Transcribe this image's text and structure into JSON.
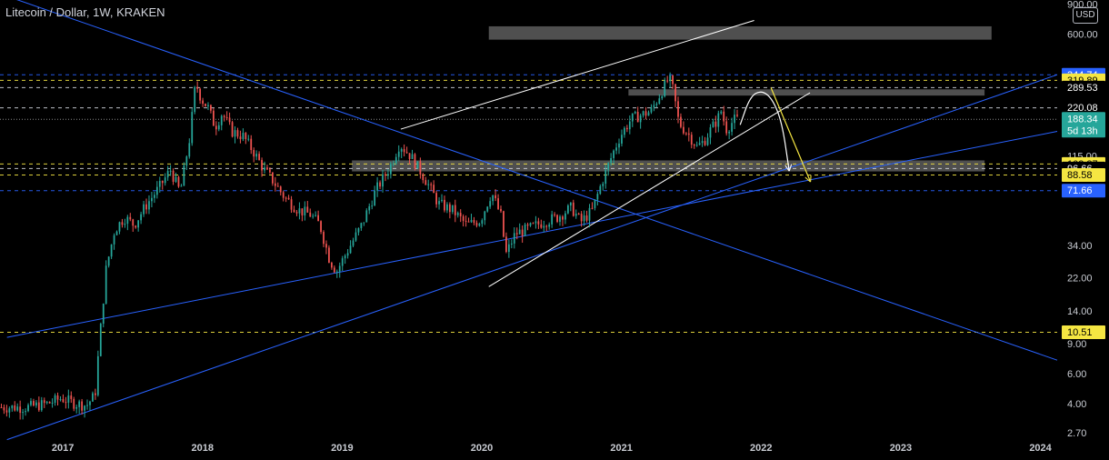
{
  "header": {
    "symbol_title": "Litecoin / Dollar, 1W, KRAKEN",
    "currency_button": "USD"
  },
  "colors": {
    "background": "#000000",
    "candle_up": "#26a69a",
    "candle_down": "#ef5350",
    "trendline_blue": "#2962ff",
    "trendline_white": "#ffffff",
    "projection_yellow": "#f5e642",
    "zone_gray": "#5d5d5d",
    "level_white": "#d1d4dc",
    "level_yellow": "#f5e642",
    "level_blue": "#2962ff"
  },
  "chart_data": {
    "type": "candlestick",
    "exchange": "KRAKEN",
    "interval": "1W",
    "y_scale": "log",
    "ylim": [
      2.5,
      950
    ],
    "xlim": [
      2016.55,
      2024.12
    ],
    "grid": false,
    "x_tick_labels": [
      "2017",
      "2018",
      "2019",
      "2020",
      "2021",
      "2022",
      "2023",
      "2024"
    ],
    "x_tick_values": [
      2017,
      2018,
      2019,
      2020,
      2021,
      2022,
      2023,
      2024
    ],
    "y_tick_labels": [
      "900.00",
      "600.00",
      "115.00",
      "34.00",
      "22.00",
      "14.00",
      "9.00",
      "6.00",
      "4.00",
      "2.70"
    ],
    "y_tick_values": [
      900,
      600,
      115,
      34,
      22,
      14,
      9,
      6,
      4,
      2.7
    ],
    "price_levels": [
      {
        "value": 344.74,
        "label": "344.74",
        "style": "badge-blue"
      },
      {
        "value": 319.89,
        "label": "319.89",
        "style": "dashed-yellow"
      },
      {
        "value": 289.53,
        "label": "289.53",
        "style": "dashed-white"
      },
      {
        "value": 220.08,
        "label": "220.08",
        "style": "dashed-white"
      },
      {
        "value": 188.34,
        "label": "188.34",
        "style": "current"
      },
      {
        "value": 102.87,
        "label": "102.87",
        "style": "dashed-yellow"
      },
      {
        "value": 96.66,
        "label": "96.66",
        "style": "dashed-white"
      },
      {
        "value": 88.58,
        "label": "88.58",
        "style": "dashed-yellow"
      },
      {
        "value": 71.66,
        "label": "71.66",
        "style": "badge-blue"
      },
      {
        "value": 10.51,
        "label": "10.51",
        "style": "dashed-yellow"
      }
    ],
    "current_price": {
      "value": 188.34,
      "label": "188.34",
      "countdown": "5d 13h"
    },
    "zones": [
      {
        "x": [
          2020.05,
          2023.65
        ],
        "y": [
          555,
          665
        ]
      },
      {
        "x": [
          2021.05,
          2023.6
        ],
        "y": [
          260,
          283
        ]
      },
      {
        "x": [
          2019.07,
          2023.6
        ],
        "y": [
          93,
          108
        ]
      }
    ],
    "trendlines": [
      {
        "color": "blue",
        "points": [
          [
            2016.6,
            1000
          ],
          [
            2024.12,
            7.2
          ]
        ]
      },
      {
        "color": "blue",
        "points": [
          [
            2016.6,
            9.8
          ],
          [
            2024.12,
            160
          ]
        ]
      },
      {
        "color": "blue",
        "points": [
          [
            2016.6,
            2.45
          ],
          [
            2024.12,
            345
          ]
        ]
      },
      {
        "color": "white",
        "points": [
          [
            2019.42,
            165
          ],
          [
            2021.95,
            720
          ]
        ]
      },
      {
        "color": "white",
        "points": [
          [
            2020.05,
            19.5
          ],
          [
            2022.35,
            270
          ]
        ]
      }
    ],
    "projections": [
      {
        "color": "white",
        "points": [
          [
            2021.85,
            175
          ],
          [
            2021.92,
            255
          ],
          [
            2022.0,
            280
          ],
          [
            2022.08,
            250
          ],
          [
            2022.15,
            180
          ],
          [
            2022.2,
            95
          ]
        ]
      },
      {
        "color": "yellow",
        "points": [
          [
            2022.07,
            290
          ],
          [
            2022.35,
            82
          ]
        ]
      }
    ],
    "price_path": [
      [
        2016.55,
        3.8
      ],
      [
        2016.75,
        3.8
      ],
      [
        2016.9,
        4.0
      ],
      [
        2017.0,
        4.3
      ],
      [
        2017.1,
        4.0
      ],
      [
        2017.18,
        3.9
      ],
      [
        2017.24,
        4.5
      ],
      [
        2017.27,
        9.0
      ],
      [
        2017.32,
        25
      ],
      [
        2017.38,
        42
      ],
      [
        2017.45,
        50
      ],
      [
        2017.52,
        45
      ],
      [
        2017.6,
        58
      ],
      [
        2017.7,
        75
      ],
      [
        2017.78,
        95
      ],
      [
        2017.85,
        70
      ],
      [
        2017.92,
        150
      ],
      [
        2017.96,
        310
      ],
      [
        2018.0,
        250
      ],
      [
        2018.05,
        220
      ],
      [
        2018.1,
        170
      ],
      [
        2018.15,
        205
      ],
      [
        2018.22,
        160
      ],
      [
        2018.3,
        150
      ],
      [
        2018.38,
        120
      ],
      [
        2018.45,
        95
      ],
      [
        2018.5,
        85
      ],
      [
        2018.6,
        65
      ],
      [
        2018.7,
        55
      ],
      [
        2018.78,
        52
      ],
      [
        2018.85,
        45
      ],
      [
        2018.92,
        28
      ],
      [
        2018.97,
        24
      ],
      [
        2019.05,
        32
      ],
      [
        2019.15,
        45
      ],
      [
        2019.25,
        72
      ],
      [
        2019.35,
        98
      ],
      [
        2019.42,
        135
      ],
      [
        2019.5,
        115
      ],
      [
        2019.6,
        85
      ],
      [
        2019.7,
        60
      ],
      [
        2019.8,
        55
      ],
      [
        2019.9,
        45
      ],
      [
        2020.0,
        48
      ],
      [
        2020.08,
        70
      ],
      [
        2020.15,
        50
      ],
      [
        2020.18,
        30
      ],
      [
        2020.25,
        40
      ],
      [
        2020.35,
        43
      ],
      [
        2020.45,
        47
      ],
      [
        2020.55,
        50
      ],
      [
        2020.65,
        57
      ],
      [
        2020.72,
        47
      ],
      [
        2020.8,
        55
      ],
      [
        2020.88,
        85
      ],
      [
        2020.95,
        120
      ],
      [
        2021.0,
        150
      ],
      [
        2021.08,
        190
      ],
      [
        2021.15,
        200
      ],
      [
        2021.22,
        210
      ],
      [
        2021.28,
        260
      ],
      [
        2021.35,
        330
      ],
      [
        2021.38,
        280
      ],
      [
        2021.42,
        180
      ],
      [
        2021.5,
        150
      ],
      [
        2021.55,
        130
      ],
      [
        2021.6,
        140
      ],
      [
        2021.65,
        165
      ],
      [
        2021.7,
        190
      ],
      [
        2021.72,
        215
      ],
      [
        2021.76,
        165
      ],
      [
        2021.8,
        180
      ],
      [
        2021.82,
        188
      ]
    ]
  }
}
